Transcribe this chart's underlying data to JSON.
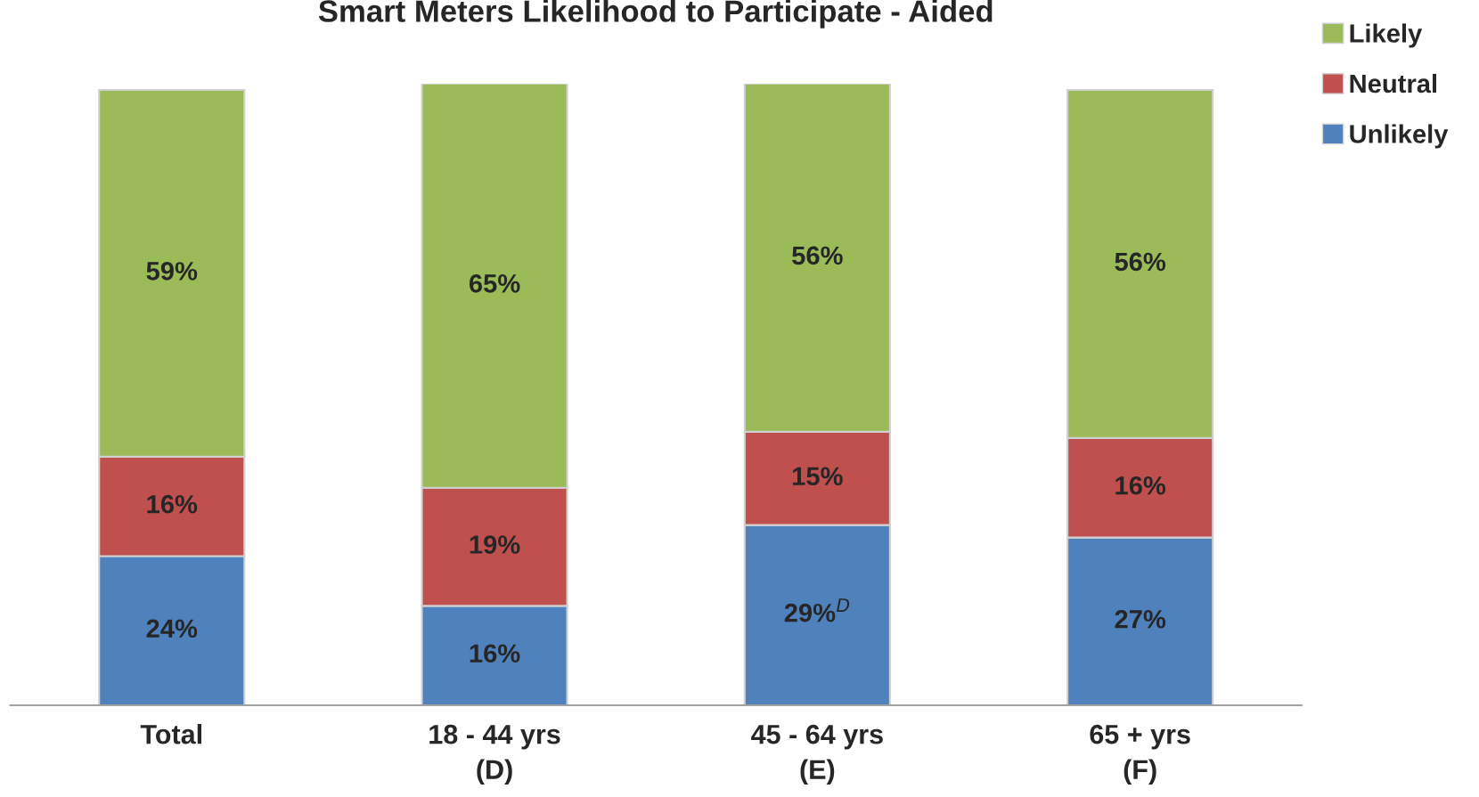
{
  "chart_data": {
    "type": "bar",
    "title": "Smart Meters Likelihood to Participate - Aided",
    "categories": [
      "Total",
      "18 - 44 yrs\n(D)",
      "45 - 64 yrs\n(E)",
      "65 + yrs\n(F)"
    ],
    "stacked": true,
    "ylim": [
      0,
      100
    ],
    "legend": "top right",
    "grid": false,
    "series": [
      {
        "name": "Unlikely",
        "color": "#4f81bd",
        "values": [
          24,
          16,
          29,
          27
        ],
        "value_labels": [
          "24%",
          "16%",
          "29%$^{D}$",
          "27%"
        ]
      },
      {
        "name": "Neutral",
        "color": "#c0504d",
        "values": [
          16,
          19,
          15,
          16
        ],
        "value_labels": [
          "16%",
          "19%",
          "15%",
          "16%"
        ]
      },
      {
        "name": "Likely",
        "color": "#9bbb59",
        "values": [
          59,
          65,
          56,
          56
        ],
        "value_labels": [
          "59%",
          "65%",
          "56%",
          "56%"
        ]
      }
    ]
  }
}
